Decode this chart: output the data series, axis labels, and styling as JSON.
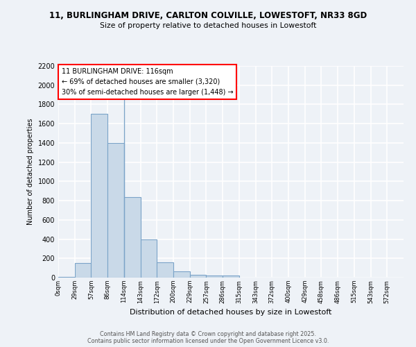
{
  "title1": "11, BURLINGHAM DRIVE, CARLTON COLVILLE, LOWESTOFT, NR33 8GD",
  "title2": "Size of property relative to detached houses in Lowestoft",
  "xlabel": "Distribution of detached houses by size in Lowestoft",
  "ylabel": "Number of detached properties",
  "bin_labels": [
    "0sqm",
    "29sqm",
    "57sqm",
    "86sqm",
    "114sqm",
    "143sqm",
    "172sqm",
    "200sqm",
    "229sqm",
    "257sqm",
    "286sqm",
    "315sqm",
    "343sqm",
    "372sqm",
    "400sqm",
    "429sqm",
    "458sqm",
    "486sqm",
    "515sqm",
    "543sqm",
    "572sqm"
  ],
  "bar_heights": [
    10,
    150,
    1700,
    1400,
    840,
    400,
    160,
    65,
    30,
    25,
    25,
    0,
    0,
    0,
    0,
    0,
    0,
    0,
    0,
    0,
    0
  ],
  "bar_color": "#c9d9e8",
  "bar_edge_color": "#7ba3c8",
  "vline_x": 4,
  "annotation_text": "11 BURLINGHAM DRIVE: 116sqm\n← 69% of detached houses are smaller (3,320)\n30% of semi-detached houses are larger (1,448) →",
  "ylim": [
    0,
    2200
  ],
  "yticks": [
    0,
    200,
    400,
    600,
    800,
    1000,
    1200,
    1400,
    1600,
    1800,
    2000,
    2200
  ],
  "background_color": "#eef2f7",
  "grid_color": "#ffffff",
  "footer1": "Contains HM Land Registry data © Crown copyright and database right 2025.",
  "footer2": "Contains public sector information licensed under the Open Government Licence v3.0."
}
